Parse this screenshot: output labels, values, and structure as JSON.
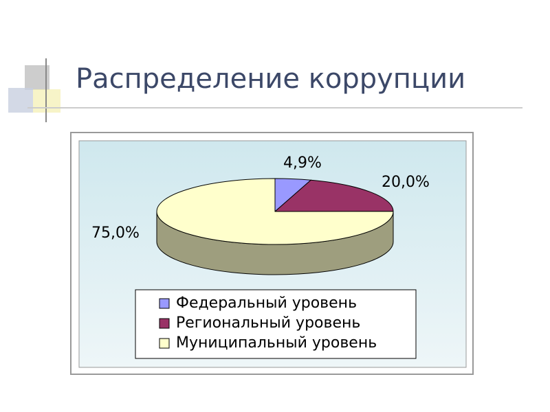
{
  "chart_data": {
    "type": "pie",
    "title": "Распределение коррупции",
    "categories": [
      "Федеральный уровень",
      "Региональный уровень",
      "Муниципальный уровень"
    ],
    "values": [
      4.9,
      20.0,
      75.0
    ],
    "value_labels": [
      "4,9%",
      "20,0%",
      "75,0%"
    ],
    "colors": [
      "#9999ff",
      "#993366",
      "#ffffcc"
    ],
    "legend": "bottom"
  }
}
